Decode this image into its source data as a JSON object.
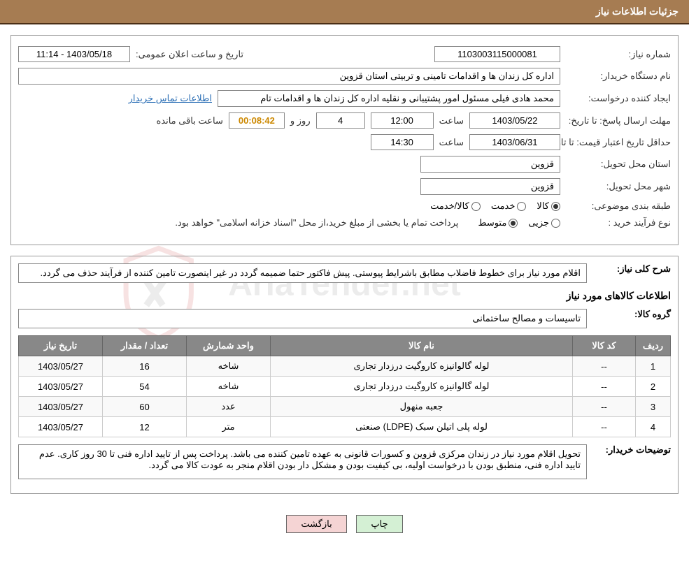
{
  "header": {
    "title": "جزئیات اطلاعات نیاز"
  },
  "form": {
    "need_number_label": "شماره نیاز:",
    "need_number": "1103003115000081",
    "announce_date_label": "تاریخ و ساعت اعلان عمومی:",
    "announce_date": "1403/05/18 - 11:14",
    "buyer_name_label": "نام دستگاه خریدار:",
    "buyer_name": "اداره کل زندان ها و اقدامات تامینی و تربیتی استان قزوین",
    "requester_label": "ایجاد کننده درخواست:",
    "requester": "محمد هادی فیلی مسئول امور پشتیبانی و نقلیه اداره کل زندان ها و اقدامات تام",
    "contact_link": "اطلاعات تماس خریدار",
    "response_deadline_label": "مهلت ارسال پاسخ: تا تاریخ:",
    "response_date": "1403/05/22",
    "time_label": "ساعت",
    "response_time": "12:00",
    "days_and": "روز و",
    "days_remaining": "4",
    "countdown": "00:08:42",
    "time_remaining_label": "ساعت باقی مانده",
    "price_validity_label": "حداقل تاریخ اعتبار قیمت: تا تاریخ:",
    "price_validity_date": "1403/06/31",
    "price_validity_time": "14:30",
    "delivery_province_label": "استان محل تحویل:",
    "delivery_province": "قزوین",
    "delivery_city_label": "شهر محل تحویل:",
    "delivery_city": "قزوین",
    "classification_label": "طبقه بندی موضوعی:",
    "class_opts": {
      "goods": "کالا",
      "service": "خدمت",
      "goods_service": "کالا/خدمت"
    },
    "purchase_type_label": "نوع فرآیند خرید :",
    "purchase_opts": {
      "partial": "جزیی",
      "medium": "متوسط"
    },
    "purchase_note": "پرداخت تمام یا بخشی از مبلغ خرید،از محل \"اسناد خزانه اسلامی\" خواهد بود."
  },
  "details": {
    "general_desc_label": "شرح کلی نیاز:",
    "general_desc": "اقلام مورد نیاز برای خطوط فاضلاب مطابق باشرایط پیوستی. پیش فاکتور حتما ضمیمه گردد در غیر اینصورت تامین کننده از فرآیند حذف می گردد.",
    "items_title": "اطلاعات کالاهای مورد نیاز",
    "goods_group_label": "گروه کالا:",
    "goods_group": "تاسیسات و مصالح ساختمانی",
    "table": {
      "headers": {
        "row": "ردیف",
        "code": "کد کالا",
        "name": "نام کالا",
        "unit": "واحد شمارش",
        "qty": "تعداد / مقدار",
        "date": "تاریخ نیاز"
      },
      "rows": [
        {
          "n": "1",
          "code": "--",
          "name": "لوله گالوانیزه کاروگیت درزدار تجاری",
          "unit": "شاخه",
          "qty": "16",
          "date": "1403/05/27"
        },
        {
          "n": "2",
          "code": "--",
          "name": "لوله گالوانیزه کاروگیت درزدار تجاری",
          "unit": "شاخه",
          "qty": "54",
          "date": "1403/05/27"
        },
        {
          "n": "3",
          "code": "--",
          "name": "جعبه منهول",
          "unit": "عدد",
          "qty": "60",
          "date": "1403/05/27"
        },
        {
          "n": "4",
          "code": "--",
          "name": "لوله پلی اتیلن سبک (LDPE) صنعتی",
          "unit": "متر",
          "qty": "12",
          "date": "1403/05/27"
        }
      ]
    },
    "buyer_notes_label": "توضیحات خریدار:",
    "buyer_notes": "تحویل اقلام مورد نیاز در زندان مرکزی قزوین و کسورات قانونی به عهده تامین کننده می باشد. پرداخت پس از تایید اداره فنی تا 30 روز کاری. عدم تایید اداره فنی، منطبق بودن با درخواست اولیه، بی کیفیت بودن و مشکل دار بودن اقلام منجر به عودت کالا می گردد."
  },
  "buttons": {
    "print": "چاپ",
    "back": "بازگشت"
  },
  "watermark": {
    "text": "AriaTender.net"
  }
}
